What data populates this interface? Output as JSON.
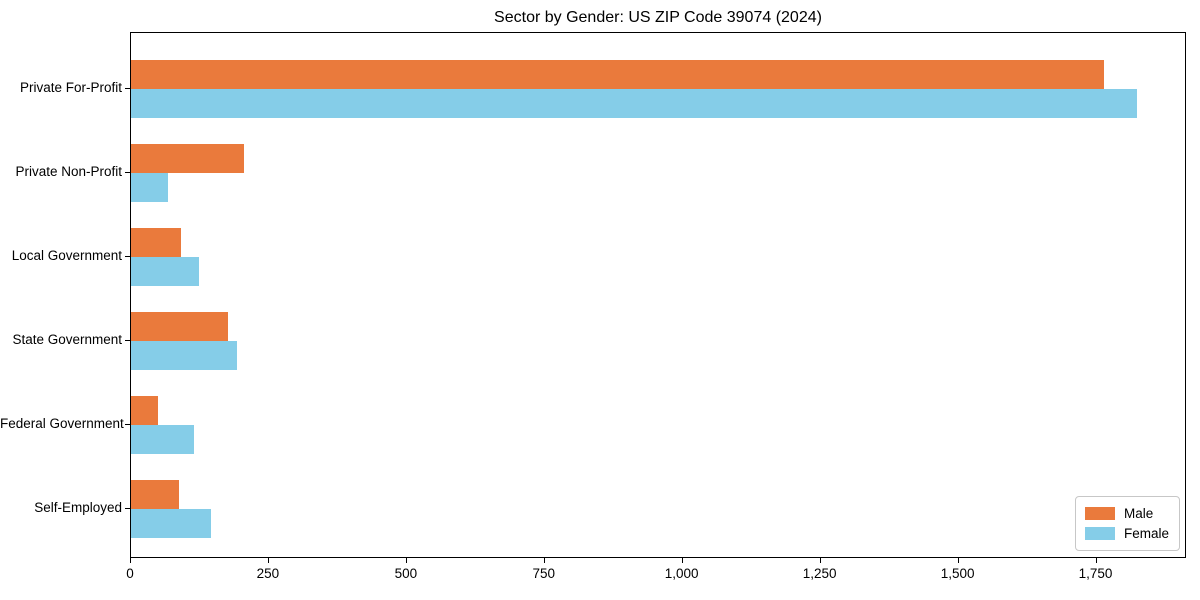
{
  "figure": {
    "background": "#ffffff",
    "axes_edge_color": "#000000",
    "text_color": "#000000"
  },
  "chart_data": {
    "type": "bar",
    "orientation": "horizontal",
    "title": "Sector by Gender: US ZIP Code 39074 (2024)",
    "xlabel": "",
    "ylabel": "",
    "categories": [
      "Private For-Profit",
      "Private Non-Profit",
      "Local Government",
      "State Government",
      "Federal Government",
      "Self-Employed"
    ],
    "series": [
      {
        "name": "Male",
        "color": "#ea7a3c",
        "values": [
          1764,
          205,
          91,
          176,
          49,
          87
        ]
      },
      {
        "name": "Female",
        "color": "#85cde8",
        "values": [
          1823,
          67,
          123,
          192,
          114,
          145
        ]
      }
    ],
    "xlim": [
      0,
      1914
    ],
    "x_ticks": [
      0,
      250,
      500,
      750,
      1000,
      1250,
      1500,
      1750
    ],
    "x_tick_labels": [
      "0",
      "250",
      "500",
      "750",
      "1,000",
      "1,250",
      "1,500",
      "1,750"
    ],
    "grid": false,
    "legend": {
      "position": "lower right",
      "entries": [
        "Male",
        "Female"
      ]
    }
  }
}
